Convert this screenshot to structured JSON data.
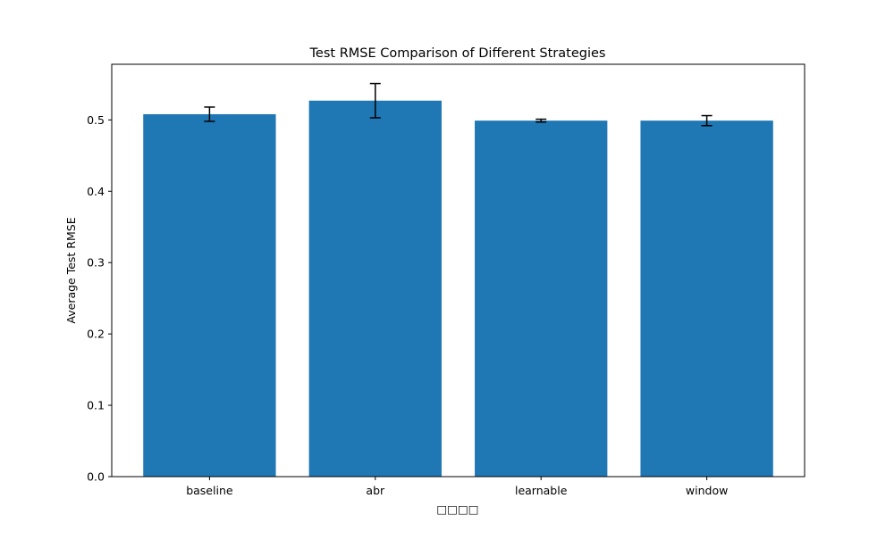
{
  "chart_data": {
    "type": "bar",
    "title": "Test RMSE Comparison of Different Strategies",
    "xlabel": "□□□□",
    "ylabel": "Average Test RMSE",
    "categories": [
      "baseline",
      "abr",
      "learnable",
      "window"
    ],
    "values": [
      0.508,
      0.527,
      0.499,
      0.499
    ],
    "errors": [
      0.01,
      0.024,
      0.002,
      0.007
    ],
    "ylim": [
      0,
      0.578
    ],
    "yticks": [
      "0.0",
      "0.1",
      "0.2",
      "0.3",
      "0.4",
      "0.5"
    ],
    "grid": false,
    "legend": "none",
    "colors": {
      "bar": "#1f77b4",
      "error": "#000000",
      "axis": "#000000"
    }
  }
}
